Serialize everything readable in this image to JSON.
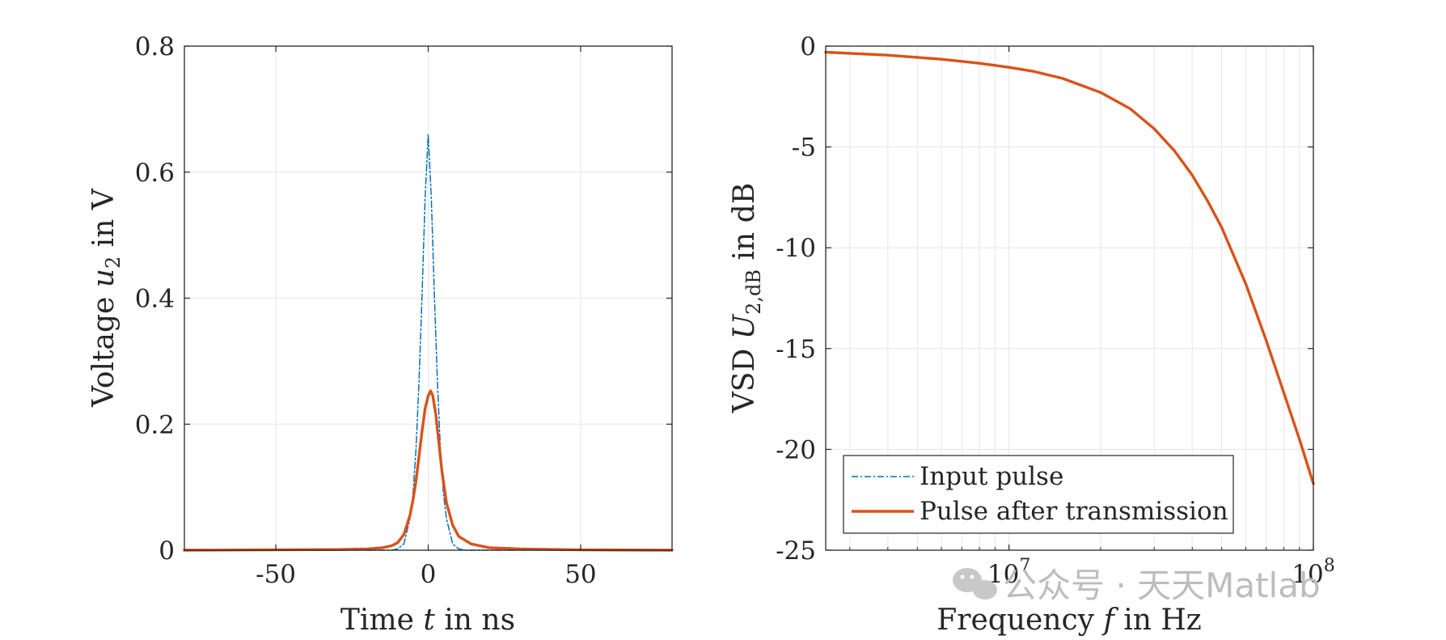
{
  "chart_data": [
    {
      "type": "line",
      "xlabel": "Time t in ns",
      "ylabel": "Voltage u2 in V",
      "xlim": [
        -80,
        80
      ],
      "ylim": [
        0,
        0.8
      ],
      "xticks": [
        -50,
        0,
        50
      ],
      "xtick_labels": [
        "-50",
        "0",
        "50"
      ],
      "yticks": [
        0,
        0.2,
        0.4,
        0.6,
        0.8
      ],
      "ytick_labels": [
        "0",
        "0.2",
        "0.4",
        "0.6",
        "0.8"
      ],
      "grid": true,
      "series": [
        {
          "name": "Input pulse",
          "color": "#0072BD",
          "style": "dash-dot",
          "x": [
            -80,
            -12,
            -10,
            -8,
            -6,
            -5,
            -4,
            -3,
            -2,
            -1,
            0,
            1,
            2,
            3,
            4,
            5,
            6,
            8,
            10,
            12,
            80
          ],
          "y": [
            0,
            0,
            0.002,
            0.01,
            0.05,
            0.09,
            0.16,
            0.27,
            0.41,
            0.56,
            0.66,
            0.56,
            0.41,
            0.27,
            0.16,
            0.09,
            0.05,
            0.01,
            0.002,
            0,
            0
          ]
        },
        {
          "name": "Pulse after transmission",
          "color": "#D95319",
          "style": "solid",
          "x": [
            -80,
            -30,
            -20,
            -15,
            -12,
            -10,
            -8,
            -6,
            -5,
            -4,
            -3,
            -2,
            -1,
            0,
            0.8,
            1.5,
            2.5,
            3.5,
            4.5,
            6,
            8,
            10,
            14,
            20,
            30,
            50,
            80
          ],
          "y": [
            0,
            0.001,
            0.002,
            0.004,
            0.007,
            0.012,
            0.025,
            0.055,
            0.08,
            0.11,
            0.15,
            0.19,
            0.225,
            0.245,
            0.253,
            0.245,
            0.215,
            0.17,
            0.125,
            0.075,
            0.04,
            0.022,
            0.01,
            0.004,
            0.002,
            0.0005,
            0
          ]
        }
      ]
    },
    {
      "type": "line",
      "xscale": "log",
      "xlabel": "Frequency f in Hz",
      "ylabel": "VSD U2,dB in dB",
      "xlim": [
        2500000,
        100000000
      ],
      "ylim": [
        -25,
        0
      ],
      "xticks": [
        10000000,
        100000000
      ],
      "xtick_labels": [
        "10^7",
        "10^8"
      ],
      "yticks": [
        0,
        -5,
        -10,
        -15,
        -20,
        -25
      ],
      "ytick_labels": [
        "0",
        "-5",
        "-10",
        "-15",
        "-20",
        "-25"
      ],
      "grid": true,
      "legend": {
        "location": "bottom-left",
        "entries": [
          "Input pulse",
          "Pulse after transmission"
        ]
      },
      "series": [
        {
          "name": "Pulse after transmission",
          "color": "#D95319",
          "style": "solid",
          "x": [
            2500000,
            4000000,
            6000000,
            8000000,
            10000000,
            12000000,
            15000000,
            20000000,
            25000000,
            30000000,
            35000000,
            40000000,
            45000000,
            50000000,
            60000000,
            70000000,
            80000000,
            90000000,
            100000000
          ],
          "y": [
            -0.3,
            -0.45,
            -0.65,
            -0.85,
            -1.05,
            -1.25,
            -1.6,
            -2.3,
            -3.1,
            -4.1,
            -5.2,
            -6.4,
            -7.7,
            -9.0,
            -11.8,
            -14.6,
            -17.2,
            -19.5,
            -21.7
          ]
        }
      ]
    }
  ],
  "watermark": {
    "symbol": "·",
    "text1": "公众号",
    "text2": "天天Matlab"
  }
}
